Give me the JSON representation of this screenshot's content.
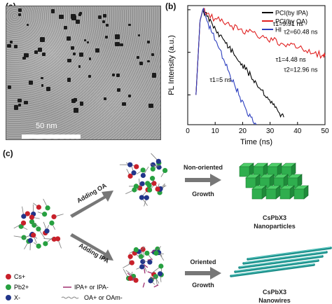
{
  "panels": {
    "a": "(a)",
    "b": "(b)",
    "c": "(c)"
  },
  "tem": {
    "scale_label": "50 nm"
  },
  "chart_data": {
    "type": "line",
    "xlabel": "Time (ns)",
    "ylabel": "PL Intensity (a.u.)",
    "xlim": [
      0,
      50
    ],
    "x_ticks": [
      "0",
      "10",
      "20",
      "30",
      "40",
      "50"
    ],
    "y_scale": "log",
    "legend_position": "top-right",
    "series": [
      {
        "name": "PCI(by IPA)",
        "color": "#000000",
        "x": [
          3,
          4.5,
          5.5,
          7,
          9,
          11,
          13,
          15,
          17,
          19,
          21,
          23,
          25,
          27,
          29,
          31,
          33,
          35
        ],
        "y": [
          0.01,
          0.55,
          1.0,
          0.7,
          0.45,
          0.3,
          0.2,
          0.13,
          0.085,
          0.06,
          0.04,
          0.028,
          0.019,
          0.013,
          0.009,
          0.006,
          0.004,
          0.003
        ]
      },
      {
        "name": "PCI(by OA)",
        "color": "#e02020",
        "x": [
          3,
          4.5,
          5.5,
          7,
          10,
          13,
          16,
          19,
          22,
          25,
          28,
          31,
          34,
          37,
          40,
          43,
          46,
          49,
          50
        ],
        "y": [
          0.01,
          0.55,
          1.0,
          0.82,
          0.62,
          0.5,
          0.42,
          0.35,
          0.3,
          0.26,
          0.22,
          0.19,
          0.165,
          0.145,
          0.125,
          0.11,
          0.095,
          0.085,
          0.082
        ]
      },
      {
        "name": "HI",
        "color": "#2d3fbf",
        "x": [
          3,
          4.5,
          5.5,
          7,
          9,
          11,
          13,
          15,
          17,
          19,
          21,
          23,
          25
        ],
        "y": [
          0.01,
          0.55,
          1.0,
          0.55,
          0.28,
          0.14,
          0.07,
          0.035,
          0.018,
          0.009,
          0.005,
          0.003,
          0.002
        ]
      }
    ],
    "annotations": [
      {
        "text": "τ1=9.91 ns",
        "x": 31,
        "y": 0.42
      },
      {
        "text": "τ2=60.48 ns",
        "x": 35,
        "y": 0.27
      },
      {
        "text": "τ1=4.48 ns",
        "x": 32,
        "y": 0.06
      },
      {
        "text": "τ2=12.96 ns",
        "x": 35,
        "y": 0.035
      },
      {
        "text": "τ1=5 ns",
        "x": 8,
        "y": 0.02
      }
    ]
  },
  "schematic": {
    "step1_top": "Adding OA",
    "step1_bottom": "Adding IPA",
    "step2_top_line1": "Non-oriented",
    "step2_top_line2": "Growth",
    "step2_bottom_line1": "Oriented",
    "step2_bottom_line2": "Growth",
    "product_top_line1": "CsPbX3",
    "product_top_line2": "Nanoparticles",
    "product_bottom_line1": "CsPbX3",
    "product_bottom_line2": "Nanowires",
    "legend": [
      {
        "label": "Cs+",
        "color": "#c8202a"
      },
      {
        "label": "Pb2+",
        "color": "#27a040"
      },
      {
        "label": "X-",
        "color": "#22358a"
      }
    ],
    "ligand_legend": [
      {
        "label": "IPA+ or IPA-",
        "color": "#a03070"
      },
      {
        "label": "OA+ or OAm-",
        "color": "#888888"
      }
    ]
  }
}
